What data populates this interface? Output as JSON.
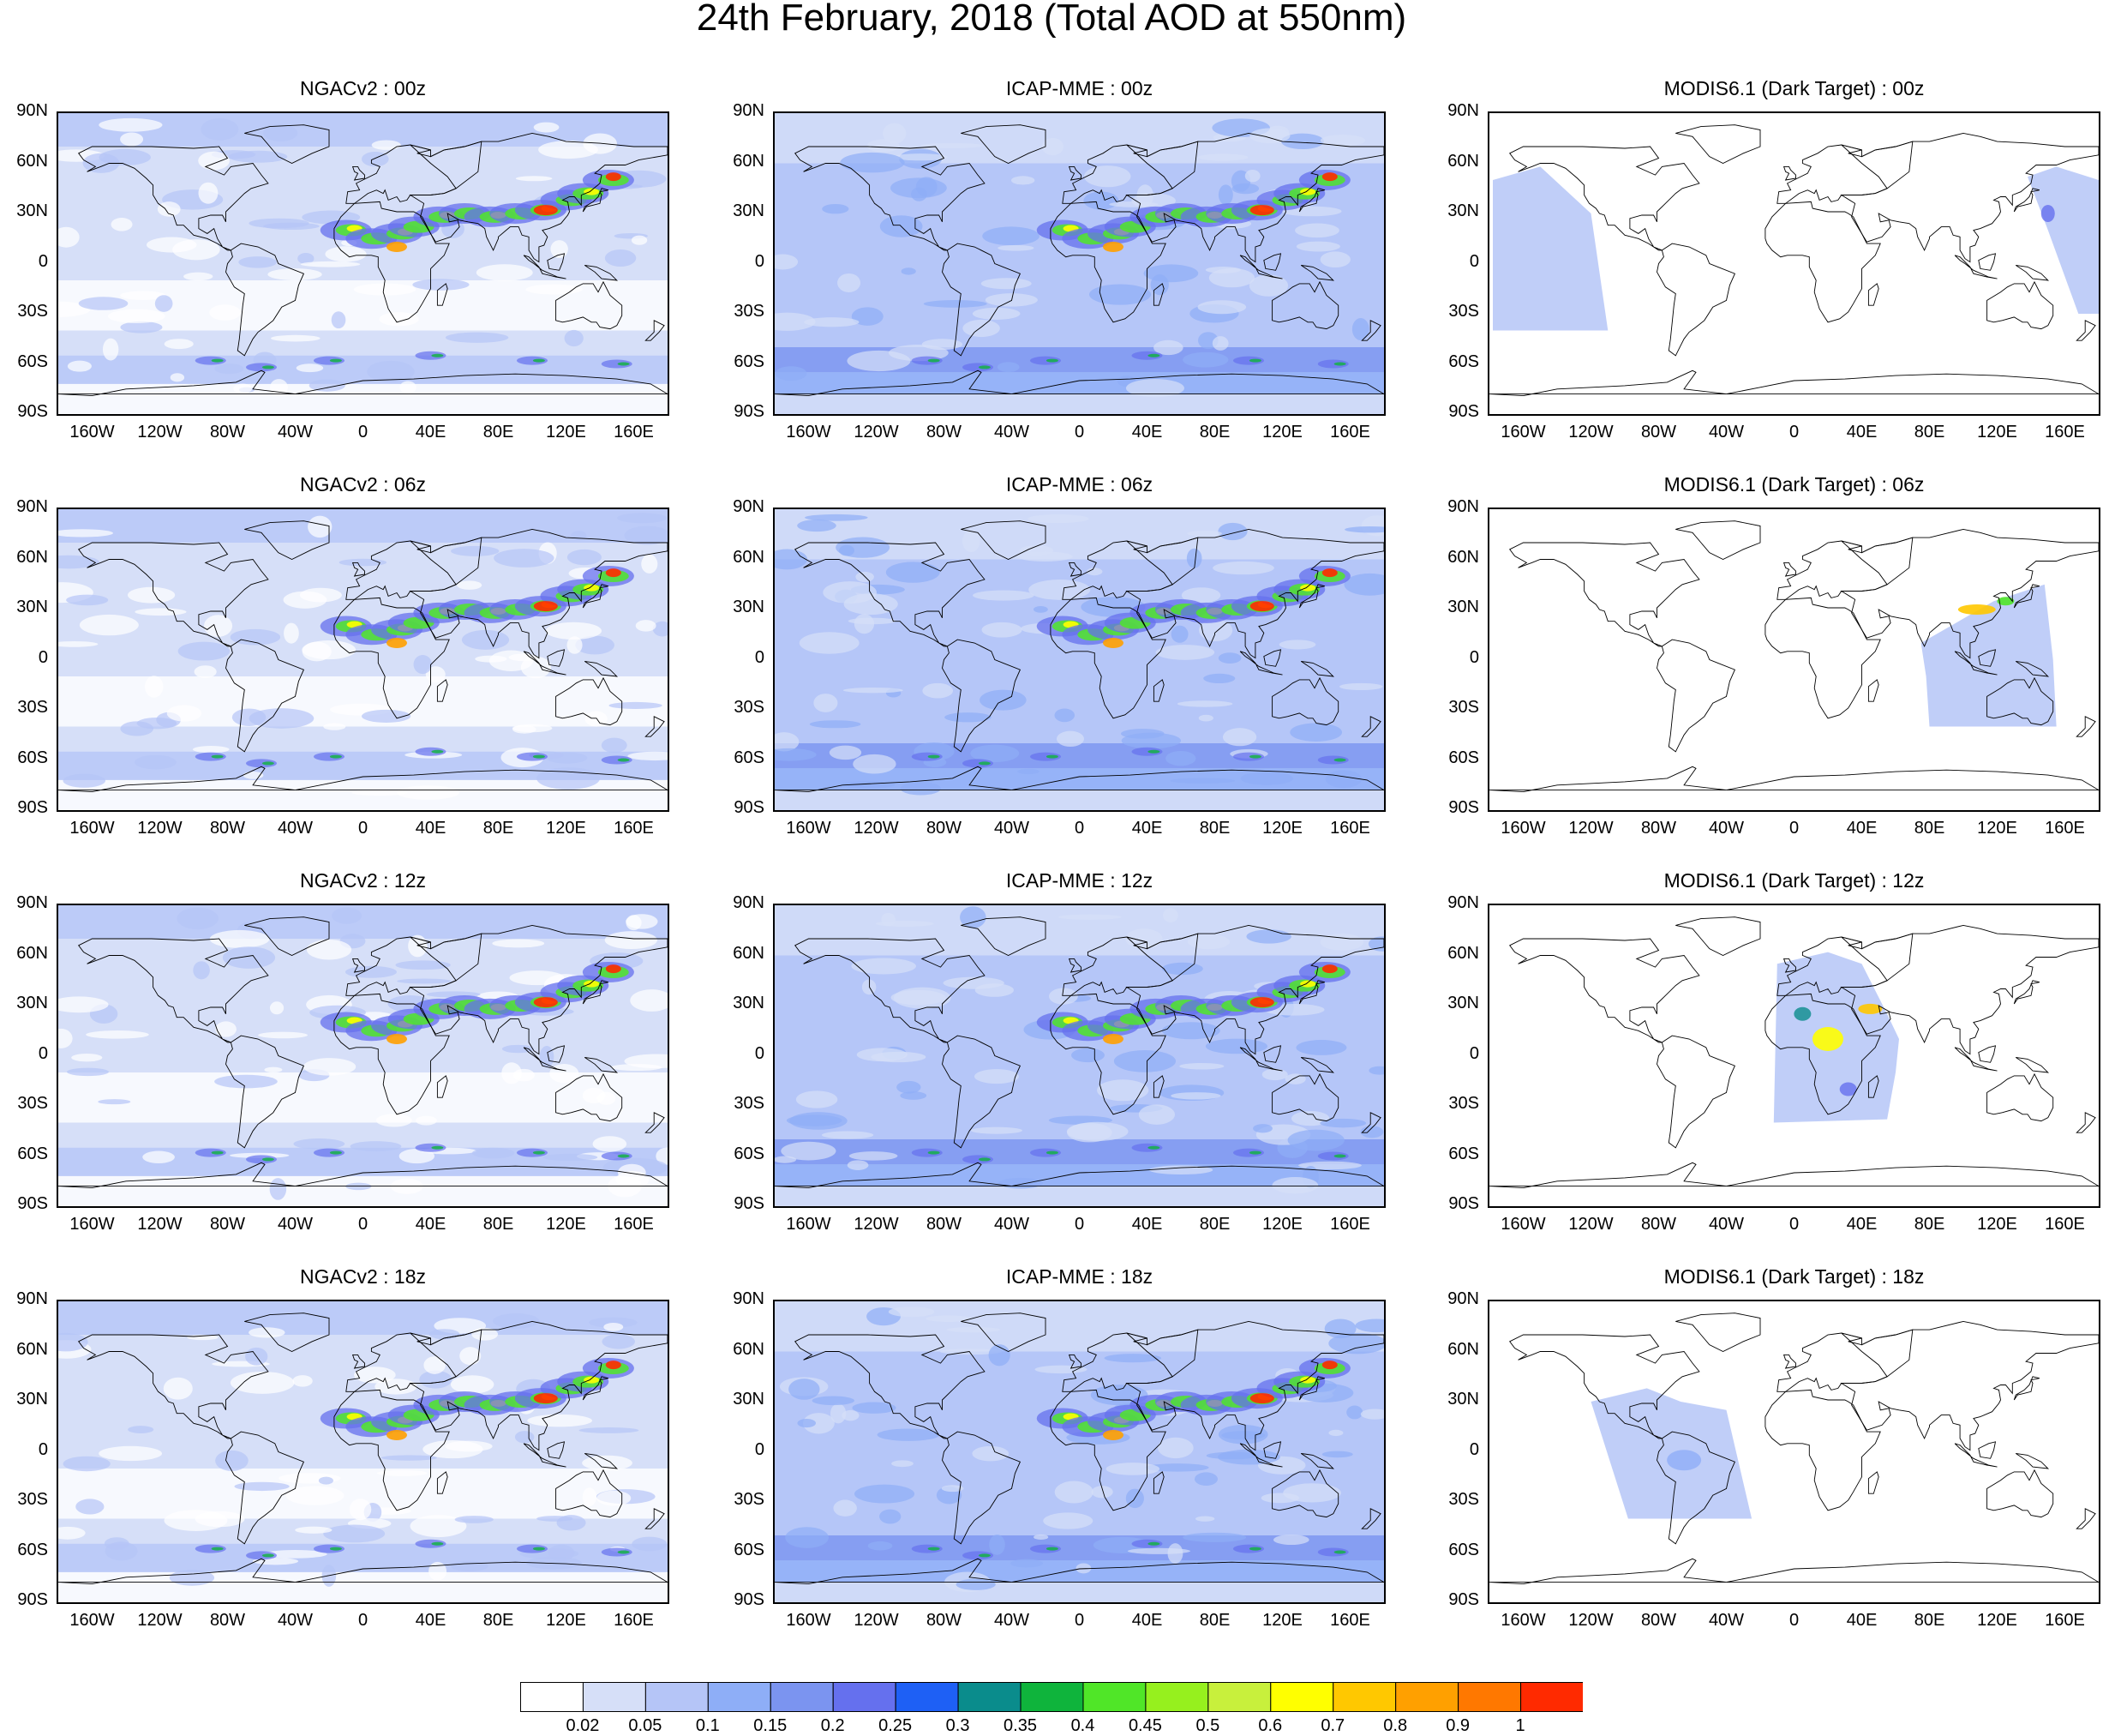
{
  "title": "24th February, 2018 (Total AOD at 550nm)",
  "lat_labels": [
    "90N",
    "60N",
    "30N",
    "0",
    "30S",
    "60S",
    "90S"
  ],
  "lon_labels": [
    "160W",
    "120W",
    "80W",
    "40W",
    "0",
    "40E",
    "80E",
    "120E",
    "160E"
  ],
  "panels": [
    {
      "title": "NGACv2 : 00z",
      "type": "model"
    },
    {
      "title": "ICAP-MME : 00z",
      "type": "ensemble"
    },
    {
      "title": "MODIS6.1 (Dark Target) : 00z",
      "type": "swath",
      "swath": "pacific"
    },
    {
      "title": "NGACv2 : 06z",
      "type": "model"
    },
    {
      "title": "ICAP-MME : 06z",
      "type": "ensemble"
    },
    {
      "title": "MODIS6.1 (Dark Target) : 06z",
      "type": "swath",
      "swath": "asia"
    },
    {
      "title": "NGACv2 : 12z",
      "type": "model"
    },
    {
      "title": "ICAP-MME : 12z",
      "type": "ensemble"
    },
    {
      "title": "MODIS6.1 (Dark Target) : 12z",
      "type": "swath",
      "swath": "africa"
    },
    {
      "title": "NGACv2 : 18z",
      "type": "model"
    },
    {
      "title": "ICAP-MME : 18z",
      "type": "ensemble"
    },
    {
      "title": "MODIS6.1 (Dark Target) : 18z",
      "type": "swath",
      "swath": "americas"
    }
  ],
  "colorbar": {
    "colors": [
      "#ffffff",
      "#d6dff8",
      "#b5c5f7",
      "#8eaef7",
      "#7b94f0",
      "#6570ee",
      "#1e60f5",
      "#0a8c8c",
      "#0fb43c",
      "#50e628",
      "#96f01e",
      "#c8f03c",
      "#ffff00",
      "#ffc800",
      "#ffa000",
      "#ff7800",
      "#ff2a00"
    ],
    "labels": [
      "0.02",
      "0.05",
      "0.1",
      "0.15",
      "0.2",
      "0.25",
      "0.3",
      "0.35",
      "0.4",
      "0.45",
      "0.5",
      "0.6",
      "0.7",
      "0.8",
      "0.9",
      "1"
    ]
  }
}
